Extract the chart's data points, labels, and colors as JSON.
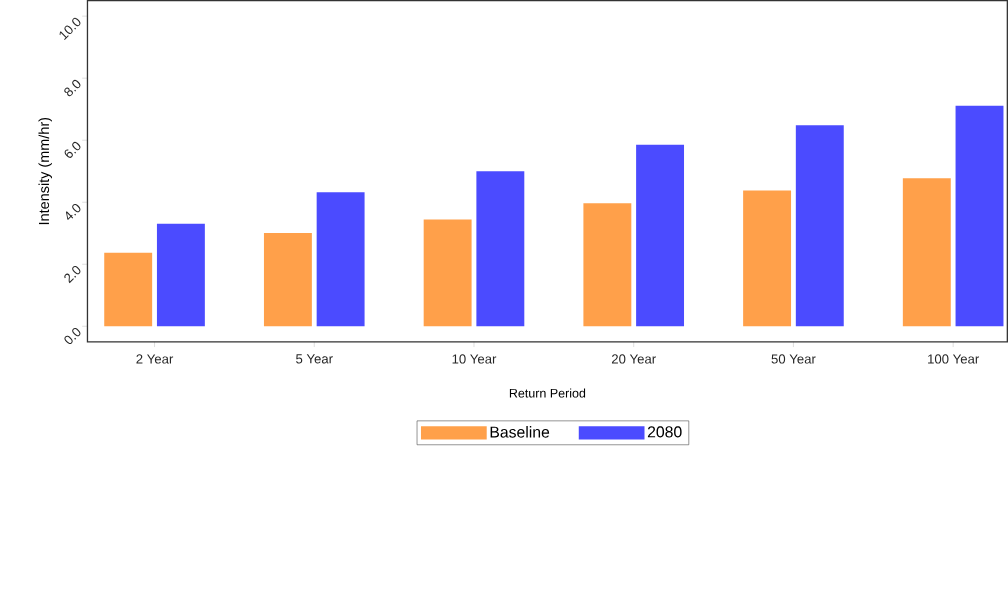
{
  "chart_data": {
    "type": "bar",
    "xlabel": "Return Period",
    "ylabel": "Intensity (mm/hr)",
    "categories": [
      "2 Year",
      "5 Year",
      "10 Year",
      "20 Year",
      "50 Year",
      "100 Year"
    ],
    "series": [
      {
        "name": "Baseline",
        "color": "#ffa04a",
        "values": [
          2.37,
          3.01,
          3.44,
          3.97,
          4.38,
          4.77
        ]
      },
      {
        "name": "2080",
        "color": "#4b4bff",
        "values": [
          3.31,
          4.32,
          5.0,
          5.85,
          6.48,
          7.11
        ]
      }
    ],
    "ylim": [
      -0.5,
      10.5
    ],
    "yticks": [
      {
        "value": 0,
        "label": "0.0"
      },
      {
        "value": 2,
        "label": "2.0"
      },
      {
        "value": 4,
        "label": "4.0"
      },
      {
        "value": 6,
        "label": "6.0"
      },
      {
        "value": 8,
        "label": "8.0"
      },
      {
        "value": 10,
        "label": "10.0"
      }
    ],
    "legend": "bottom"
  }
}
